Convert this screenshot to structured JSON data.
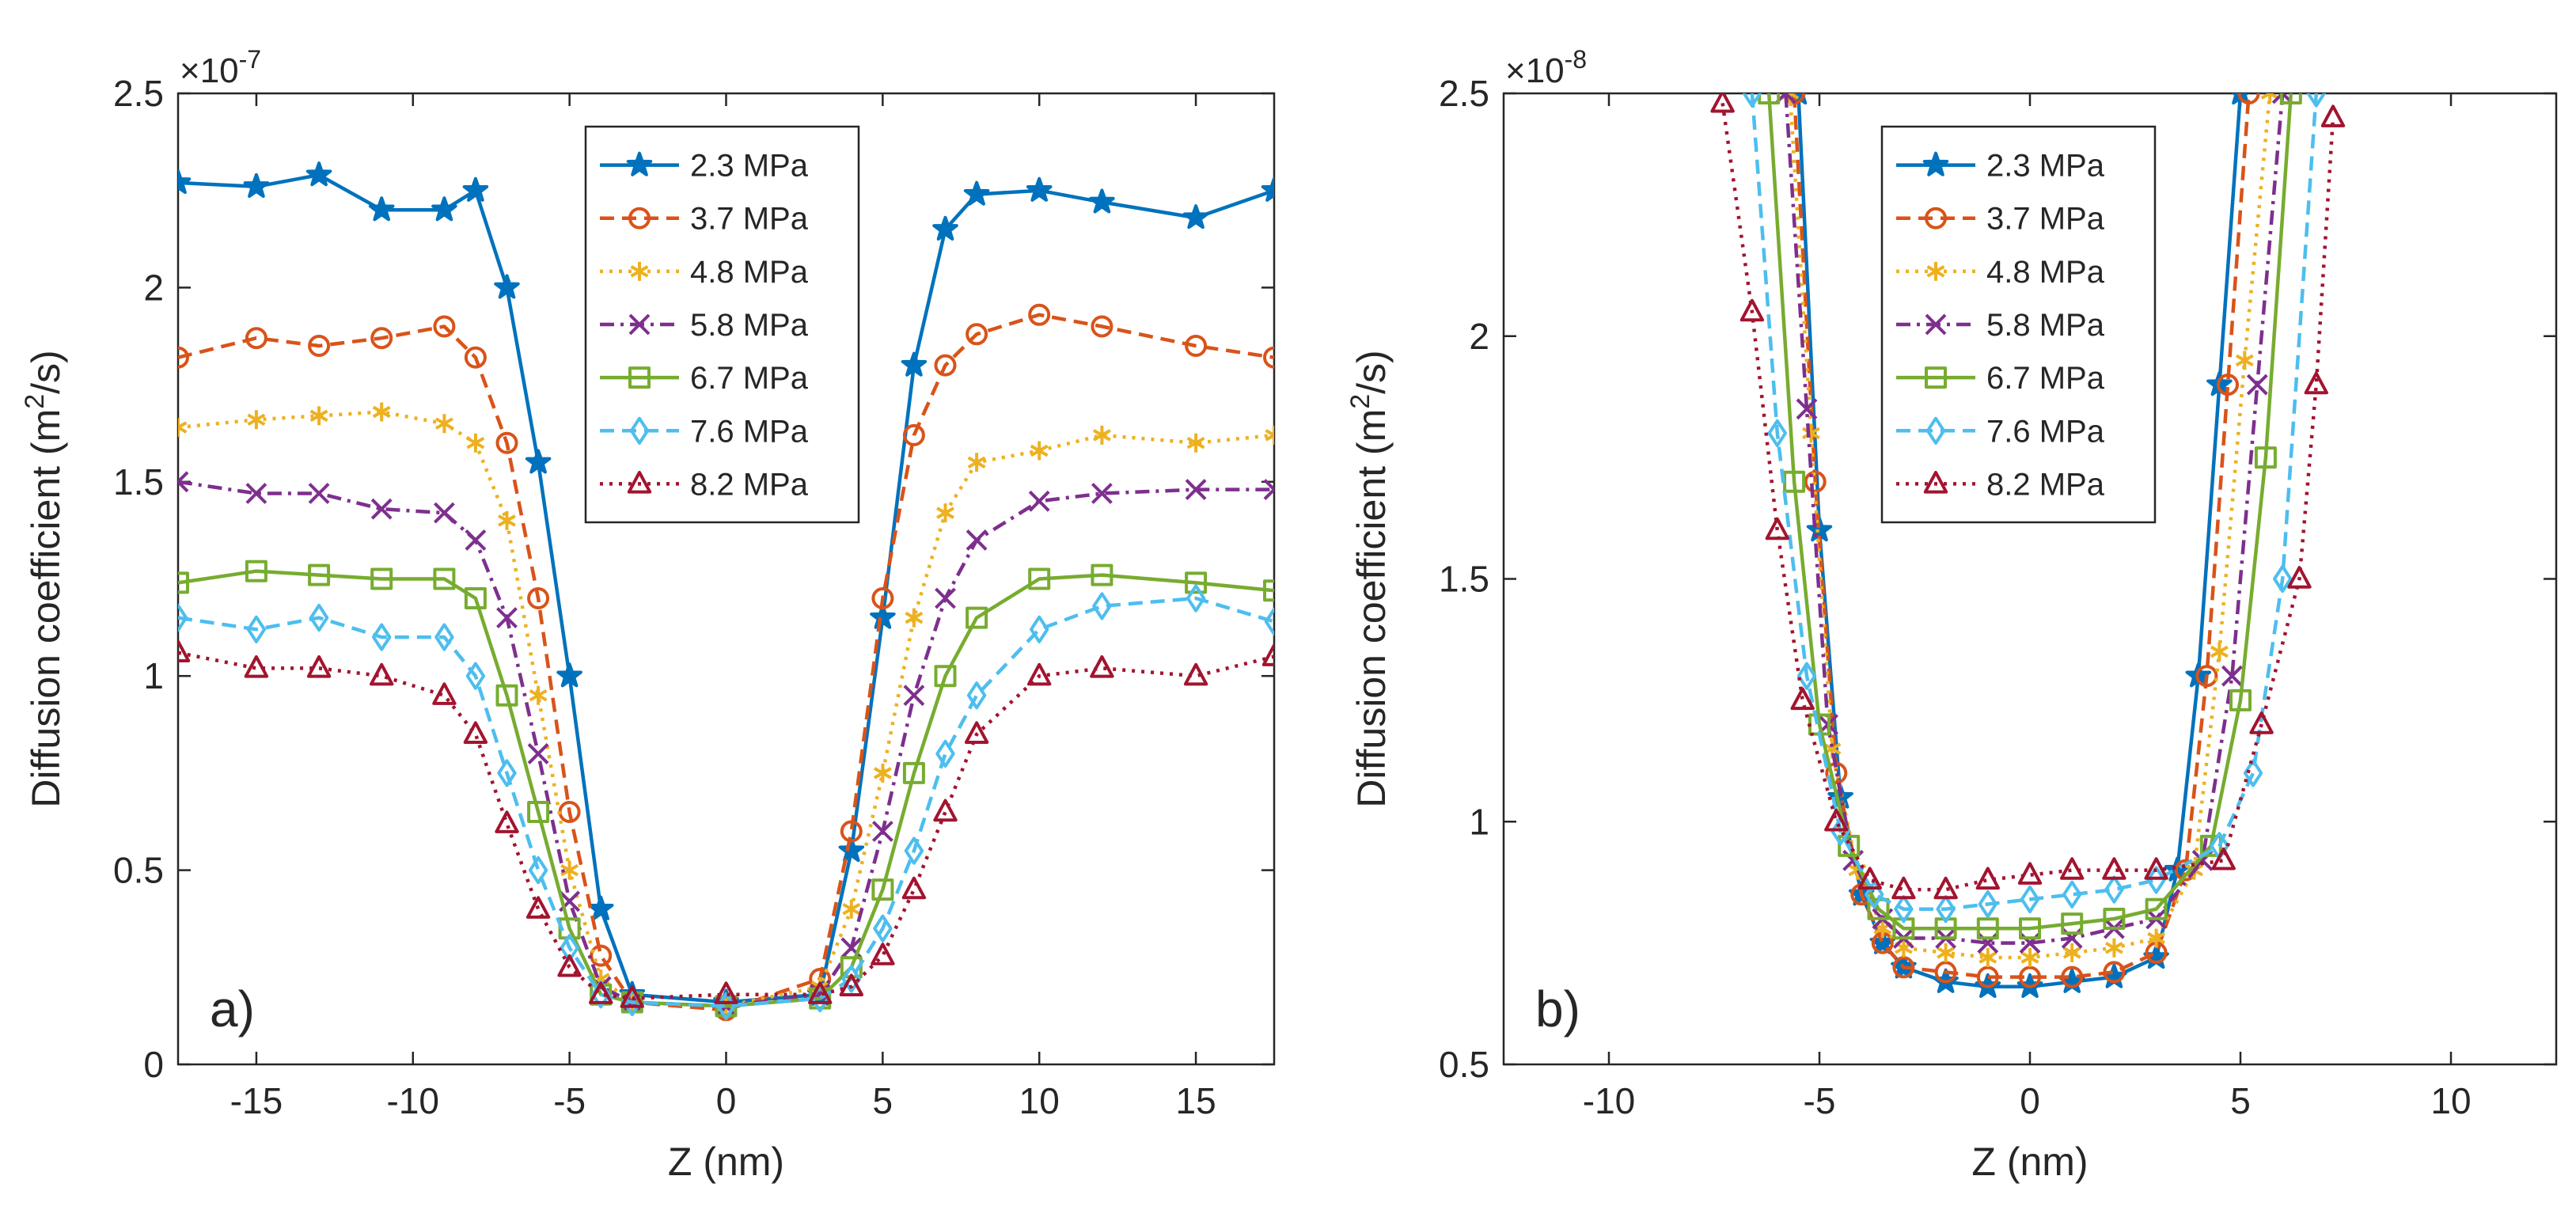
{
  "figure": {
    "panels": [
      "a",
      "b"
    ]
  },
  "chart_data": [
    {
      "id": "a",
      "type": "line",
      "panel_label": "a)",
      "xlabel": "Z (nm)",
      "ylabel_main": "Diffusion coefficient (m",
      "ylabel_sup": "2",
      "ylabel_tail": "/s)",
      "y_exponent_base": "×10",
      "y_exponent_power": "-7",
      "xlim": [
        -17.5,
        17.5
      ],
      "ylim": [
        0,
        2.5
      ],
      "xticks": [
        -15,
        -10,
        -5,
        0,
        5,
        10,
        15
      ],
      "xtick_labels": [
        "-15",
        "-10",
        "-5",
        "0",
        "5",
        "10",
        "15"
      ],
      "yticks": [
        0,
        0.5,
        1,
        1.5,
        2,
        2.5
      ],
      "ytick_labels": [
        "0",
        "0.5",
        "1",
        "1.5",
        "2",
        "2.5"
      ],
      "legend_position": "top-center",
      "series": [
        {
          "name": "2.3 MPa",
          "color": "#0072BD",
          "dash": "solid",
          "marker": "star",
          "x": [
            -17.5,
            -15,
            -13,
            -11,
            -9,
            -8,
            -7,
            -6,
            -5,
            -4,
            -3,
            0,
            3,
            4,
            5,
            6,
            7,
            8,
            10,
            12,
            15,
            17.5
          ],
          "y": [
            2.27,
            2.26,
            2.29,
            2.2,
            2.2,
            2.25,
            2.0,
            1.55,
            1.0,
            0.4,
            0.18,
            0.16,
            0.18,
            0.55,
            1.15,
            1.8,
            2.15,
            2.24,
            2.25,
            2.22,
            2.18,
            2.25
          ]
        },
        {
          "name": "3.7 MPa",
          "color": "#D95319",
          "dash": "dashed",
          "marker": "circle",
          "x": [
            -17.5,
            -15,
            -13,
            -11,
            -9,
            -8,
            -7,
            -6,
            -5,
            -4,
            -3,
            0,
            3,
            4,
            5,
            6,
            7,
            8,
            10,
            12,
            15,
            17.5
          ],
          "y": [
            1.82,
            1.87,
            1.85,
            1.87,
            1.9,
            1.82,
            1.6,
            1.2,
            0.65,
            0.28,
            0.16,
            0.14,
            0.22,
            0.6,
            1.2,
            1.62,
            1.8,
            1.88,
            1.93,
            1.9,
            1.85,
            1.82
          ]
        },
        {
          "name": "4.8 MPa",
          "color": "#EDB120",
          "dash": "dotted",
          "marker": "asterisk",
          "x": [
            -17.5,
            -15,
            -13,
            -11,
            -9,
            -8,
            -7,
            -6,
            -5,
            -4,
            -3,
            0,
            3,
            4,
            5,
            6,
            7,
            8,
            10,
            12,
            15,
            17.5
          ],
          "y": [
            1.64,
            1.66,
            1.67,
            1.68,
            1.65,
            1.6,
            1.4,
            0.95,
            0.5,
            0.22,
            0.16,
            0.15,
            0.2,
            0.4,
            0.75,
            1.15,
            1.42,
            1.55,
            1.58,
            1.62,
            1.6,
            1.62
          ]
        },
        {
          "name": "5.8 MPa",
          "color": "#7E2F8E",
          "dash": "dashdot",
          "marker": "x",
          "x": [
            -17.5,
            -15,
            -13,
            -11,
            -9,
            -8,
            -7,
            -6,
            -5,
            -4,
            -3,
            0,
            3,
            4,
            5,
            6,
            7,
            8,
            10,
            12,
            15,
            17.5
          ],
          "y": [
            1.5,
            1.47,
            1.47,
            1.43,
            1.42,
            1.35,
            1.15,
            0.8,
            0.42,
            0.2,
            0.16,
            0.15,
            0.18,
            0.3,
            0.6,
            0.95,
            1.2,
            1.35,
            1.45,
            1.47,
            1.48,
            1.48
          ]
        },
        {
          "name": "6.7 MPa",
          "color": "#77AC30",
          "dash": "solid",
          "marker": "square",
          "x": [
            -17.5,
            -15,
            -13,
            -11,
            -9,
            -8,
            -7,
            -6,
            -5,
            -4,
            -3,
            0,
            3,
            4,
            5,
            6,
            7,
            8,
            10,
            12,
            15,
            17.5
          ],
          "y": [
            1.24,
            1.27,
            1.26,
            1.25,
            1.25,
            1.2,
            0.95,
            0.65,
            0.35,
            0.18,
            0.16,
            0.15,
            0.17,
            0.25,
            0.45,
            0.75,
            1.0,
            1.15,
            1.25,
            1.26,
            1.24,
            1.22
          ]
        },
        {
          "name": "7.6 MPa",
          "color": "#4DBEEE",
          "dash": "dashed",
          "marker": "diamond",
          "x": [
            -17.5,
            -15,
            -13,
            -11,
            -9,
            -8,
            -7,
            -6,
            -5,
            -4,
            -3,
            0,
            3,
            4,
            5,
            6,
            7,
            8,
            10,
            12,
            15,
            17.5
          ],
          "y": [
            1.15,
            1.12,
            1.15,
            1.1,
            1.1,
            1.0,
            0.75,
            0.5,
            0.3,
            0.18,
            0.16,
            0.15,
            0.17,
            0.22,
            0.35,
            0.55,
            0.8,
            0.95,
            1.12,
            1.18,
            1.2,
            1.14
          ]
        },
        {
          "name": "8.2 MPa",
          "color": "#A2142F",
          "dash": "dotted",
          "marker": "triangle",
          "x": [
            -17.5,
            -15,
            -13,
            -11,
            -9,
            -8,
            -7,
            -6,
            -5,
            -4,
            -3,
            0,
            3,
            4,
            5,
            6,
            7,
            8,
            10,
            12,
            15,
            17.5
          ],
          "y": [
            1.06,
            1.02,
            1.02,
            1.0,
            0.95,
            0.85,
            0.62,
            0.4,
            0.25,
            0.18,
            0.17,
            0.18,
            0.18,
            0.2,
            0.28,
            0.45,
            0.65,
            0.85,
            1.0,
            1.02,
            1.0,
            1.05
          ]
        }
      ]
    },
    {
      "id": "b",
      "type": "line",
      "panel_label": "b)",
      "xlabel": "Z (nm)",
      "ylabel_main": "Diffusion coefficient (m",
      "ylabel_sup": "2",
      "ylabel_tail": "/s)",
      "y_exponent_base": "×10",
      "y_exponent_power": "-8",
      "xlim": [
        -12.5,
        12.5
      ],
      "ylim": [
        0.5,
        2.5
      ],
      "xticks": [
        -10,
        -5,
        0,
        5,
        10
      ],
      "xtick_labels": [
        "-10",
        "-5",
        "0",
        "5",
        "10"
      ],
      "yticks": [
        0.5,
        1,
        1.5,
        2,
        2.5
      ],
      "ytick_labels": [
        "0.5",
        "1",
        "1.5",
        "2",
        "2.5"
      ],
      "legend_position": "top-center",
      "series": [
        {
          "name": "2.3 MPa",
          "color": "#0072BD",
          "dash": "solid",
          "marker": "star",
          "x": [
            -5.5,
            -5.0,
            -4.5,
            -4.0,
            -3.5,
            -3,
            -2,
            -1,
            0,
            1,
            2,
            3,
            3.5,
            4.0,
            4.5,
            5.0
          ],
          "y": [
            2.5,
            1.6,
            1.05,
            0.85,
            0.75,
            0.7,
            0.67,
            0.66,
            0.66,
            0.67,
            0.68,
            0.72,
            0.9,
            1.3,
            1.9,
            2.5
          ]
        },
        {
          "name": "3.7 MPa",
          "color": "#D95319",
          "dash": "dashed",
          "marker": "circle",
          "x": [
            -5.6,
            -5.1,
            -4.6,
            -4.0,
            -3.5,
            -3,
            -2,
            -1,
            0,
            1,
            2,
            3,
            3.7,
            4.2,
            4.7,
            5.2
          ],
          "y": [
            2.5,
            1.7,
            1.1,
            0.85,
            0.75,
            0.7,
            0.69,
            0.68,
            0.68,
            0.68,
            0.69,
            0.73,
            0.9,
            1.3,
            1.9,
            2.5
          ]
        },
        {
          "name": "4.8 MPa",
          "color": "#EDB120",
          "dash": "dotted",
          "marker": "asterisk",
          "x": [
            -5.7,
            -5.2,
            -4.7,
            -4.1,
            -3.5,
            -3,
            -2,
            -1,
            0,
            1,
            2,
            3,
            3.9,
            4.5,
            5.1,
            5.7
          ],
          "y": [
            2.5,
            1.8,
            1.15,
            0.9,
            0.78,
            0.74,
            0.73,
            0.72,
            0.72,
            0.73,
            0.74,
            0.76,
            0.9,
            1.35,
            1.95,
            2.5
          ]
        },
        {
          "name": "5.8 MPa",
          "color": "#7E2F8E",
          "dash": "dashdot",
          "marker": "x",
          "x": [
            -5.8,
            -5.3,
            -4.8,
            -4.2,
            -3.5,
            -3,
            -2,
            -1,
            0,
            1,
            2,
            3,
            4.1,
            4.8,
            5.4,
            6.0
          ],
          "y": [
            2.5,
            1.85,
            1.2,
            0.92,
            0.8,
            0.76,
            0.76,
            0.75,
            0.75,
            0.76,
            0.78,
            0.8,
            0.92,
            1.3,
            1.9,
            2.5
          ]
        },
        {
          "name": "6.7 MPa",
          "color": "#77AC30",
          "dash": "solid",
          "marker": "square",
          "x": [
            -6.2,
            -5.6,
            -5.0,
            -4.3,
            -3.6,
            -3,
            -2,
            -1,
            0,
            1,
            2,
            3,
            4.3,
            5.0,
            5.6,
            6.2
          ],
          "y": [
            2.5,
            1.7,
            1.2,
            0.95,
            0.82,
            0.78,
            0.78,
            0.78,
            0.78,
            0.79,
            0.8,
            0.82,
            0.95,
            1.25,
            1.75,
            2.5
          ]
        },
        {
          "name": "7.6 MPa",
          "color": "#4DBEEE",
          "dash": "dashed",
          "marker": "diamond",
          "x": [
            -6.6,
            -6.0,
            -5.3,
            -4.5,
            -3.7,
            -3,
            -2,
            -1,
            0,
            1,
            2,
            3,
            4.5,
            5.3,
            6.0,
            6.8
          ],
          "y": [
            2.5,
            1.8,
            1.3,
            0.98,
            0.85,
            0.82,
            0.82,
            0.83,
            0.84,
            0.85,
            0.86,
            0.88,
            0.95,
            1.1,
            1.5,
            2.5
          ]
        },
        {
          "name": "8.2 MPa",
          "color": "#A2142F",
          "dash": "dotted",
          "marker": "triangle",
          "x": [
            -7.3,
            -6.6,
            -6.0,
            -5.4,
            -4.6,
            -3.8,
            -3,
            -2,
            -1,
            0,
            1,
            2,
            3,
            4.6,
            5.5,
            6.4,
            6.8,
            7.2
          ],
          "y": [
            2.48,
            2.05,
            1.6,
            1.25,
            1.0,
            0.88,
            0.86,
            0.86,
            0.88,
            0.89,
            0.9,
            0.9,
            0.9,
            0.92,
            1.2,
            1.5,
            1.9,
            2.45
          ]
        }
      ]
    }
  ]
}
